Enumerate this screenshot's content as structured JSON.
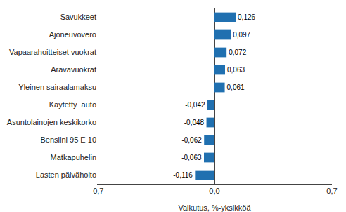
{
  "chart_data": {
    "type": "bar",
    "orientation": "horizontal",
    "xlabel": "Vaikutus, %-yksikköä",
    "categories": [
      "Lasten päivähoito",
      "Matkapuhelin",
      "Bensiini 95 E 10",
      "Asuntolainojen keskikorko",
      "Käytetty  auto",
      "Yleinen sairaalamaksu",
      "Aravavuokrat",
      "Vapaarahoitteiset vuokrat",
      "Ajoneuvovero",
      "Savukkeet"
    ],
    "values": [
      -0.116,
      -0.063,
      -0.062,
      -0.048,
      -0.042,
      0.061,
      0.063,
      0.072,
      0.097,
      0.126
    ],
    "value_labels": [
      "-0,116",
      "-0,063",
      "-0,062",
      "-0,048",
      "-0,042",
      "0,061",
      "0,063",
      "0,072",
      "0,097",
      "0,126"
    ],
    "data_labels": true,
    "color": "#2070B0",
    "xlim": [
      -0.7,
      0.7
    ],
    "xticks": [
      {
        "value": -0.7,
        "label": "-0,7"
      },
      {
        "value": 0.0,
        "label": "0,0"
      },
      {
        "value": 0.7,
        "label": "0,7"
      }
    ],
    "grid": true
  }
}
